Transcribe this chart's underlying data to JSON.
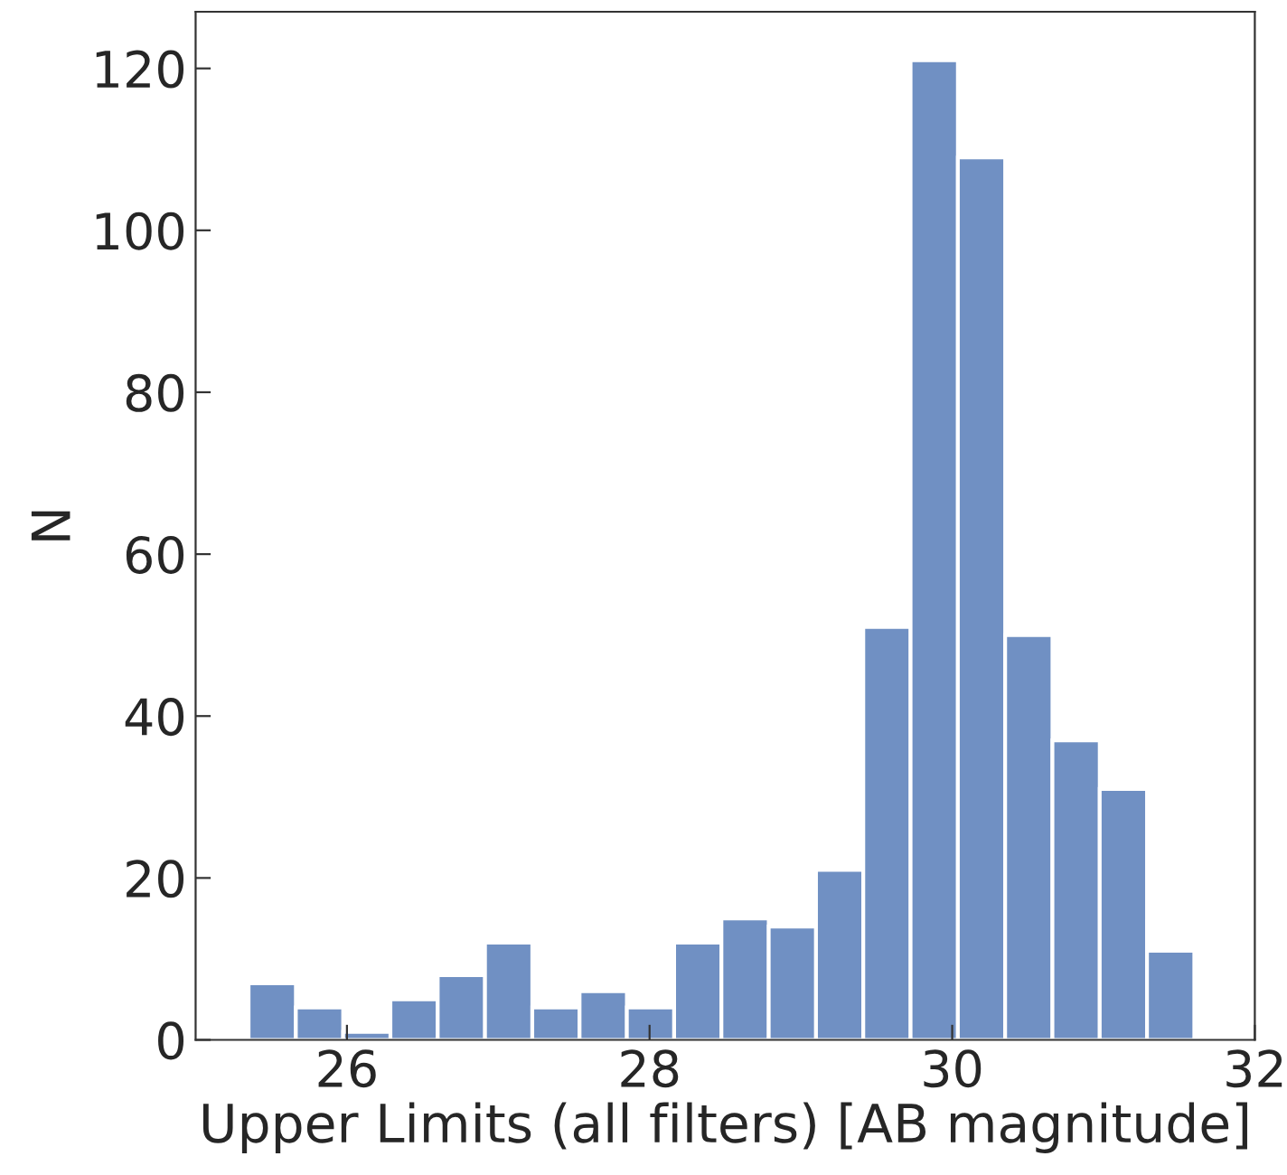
{
  "chart_data": {
    "type": "histogram",
    "xlabel": "Upper Limits (all filters) [AB magnitude]",
    "ylabel": "N",
    "bins": [
      25.35,
      25.6625,
      25.975,
      26.2875,
      26.6,
      26.9125,
      27.225,
      27.5375,
      27.85,
      28.1625,
      28.475,
      28.7875,
      29.1,
      29.4125,
      29.725,
      30.0375,
      30.35,
      30.6625,
      30.975,
      31.2875,
      31.6
    ],
    "values": [
      7,
      4,
      1,
      5,
      8,
      12,
      4,
      6,
      4,
      12,
      15,
      14,
      21,
      51,
      121,
      109,
      50,
      37,
      31,
      11
    ],
    "color": "#7090c3",
    "xlim": [
      25,
      32
    ],
    "xticks": [
      26,
      28,
      30,
      32
    ],
    "ylim": [
      0,
      127
    ],
    "yticks": [
      0,
      20,
      40,
      60,
      80,
      100,
      120
    ],
    "grid": false,
    "legend": false
  }
}
